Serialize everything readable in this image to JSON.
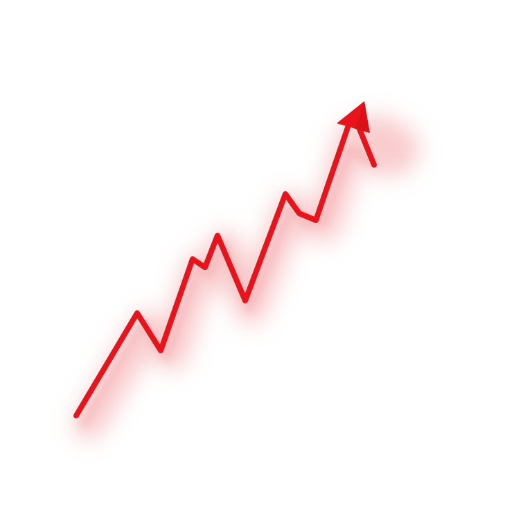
{
  "illustration": {
    "subject": "rising-zigzag-arrow-icon",
    "colors": {
      "line": "#e8141b",
      "line_dark": "#c90f15",
      "shadow": "#f4a3a6",
      "background": "#ffffff"
    }
  }
}
